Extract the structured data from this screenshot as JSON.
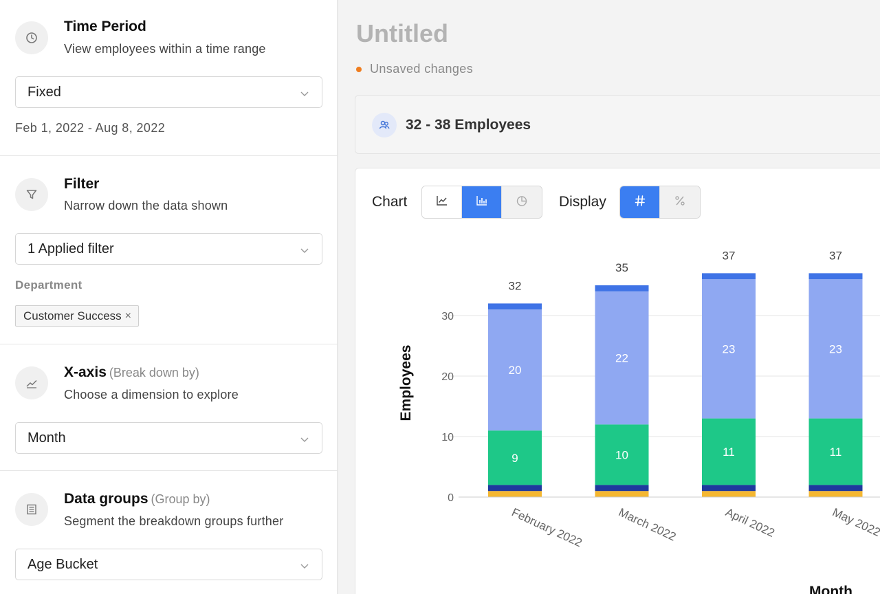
{
  "sidebar": {
    "time_period": {
      "icon": "clock-icon",
      "title": "Time Period",
      "subtitle": "View employees within a time range",
      "select_value": "Fixed",
      "date_range": "Feb 1, 2022 - Aug 8, 2022"
    },
    "filter": {
      "icon": "filter-icon",
      "title": "Filter",
      "subtitle": "Narrow down the data shown",
      "select_value": "1 Applied filter",
      "department_label": "Department",
      "chip_label": "Customer Success",
      "chip_remove": "×"
    },
    "x_axis": {
      "icon": "line-chart-icon",
      "title": "X-axis",
      "title_hint": "(Break down by)",
      "subtitle": "Choose a dimension to explore",
      "select_value": "Month"
    },
    "data_groups": {
      "icon": "group-icon",
      "title": "Data groups",
      "title_hint": "(Group by)",
      "subtitle": "Segment the breakdown groups further",
      "select_value": "Age Bucket"
    }
  },
  "main": {
    "title": "Untitled",
    "status": "Unsaved changes",
    "status_color": "#ef7d1f",
    "employee_range": "32 - 38 Employees",
    "chart_label": "Chart",
    "display_label": "Display",
    "chart_types": [
      "line-chart-icon",
      "bar-chart-icon",
      "pie-chart-icon"
    ],
    "chart_type_selected": "bar",
    "display_modes": [
      "hash-icon",
      "percent-icon"
    ],
    "display_mode_selected": "count",
    "accent": "#3b7ef1"
  },
  "chart_data": {
    "type": "bar",
    "stacked": true,
    "title": "",
    "xlabel": "Month",
    "ylabel": "Employees",
    "ylim": [
      0,
      40
    ],
    "yticks": [
      0,
      10,
      20,
      30
    ],
    "grid": true,
    "categories": [
      "February 2022",
      "March 2022",
      "April 2022",
      "May 2022"
    ],
    "totals": [
      32,
      35,
      37,
      37
    ],
    "series": [
      {
        "color": "#f5b731",
        "values": [
          1,
          1,
          1,
          1
        ]
      },
      {
        "color": "#1f3a9e",
        "values": [
          1,
          1,
          1,
          1
        ]
      },
      {
        "color": "#1ec888",
        "values": [
          9,
          10,
          11,
          11
        ],
        "labels": [
          "9",
          "10",
          "11",
          "11"
        ]
      },
      {
        "color": "#8fa8f2",
        "values": [
          20,
          22,
          23,
          23
        ],
        "labels": [
          "20",
          "22",
          "23",
          "23"
        ]
      },
      {
        "color": "#3f73e6",
        "values": [
          1,
          1,
          1,
          1
        ]
      }
    ]
  }
}
